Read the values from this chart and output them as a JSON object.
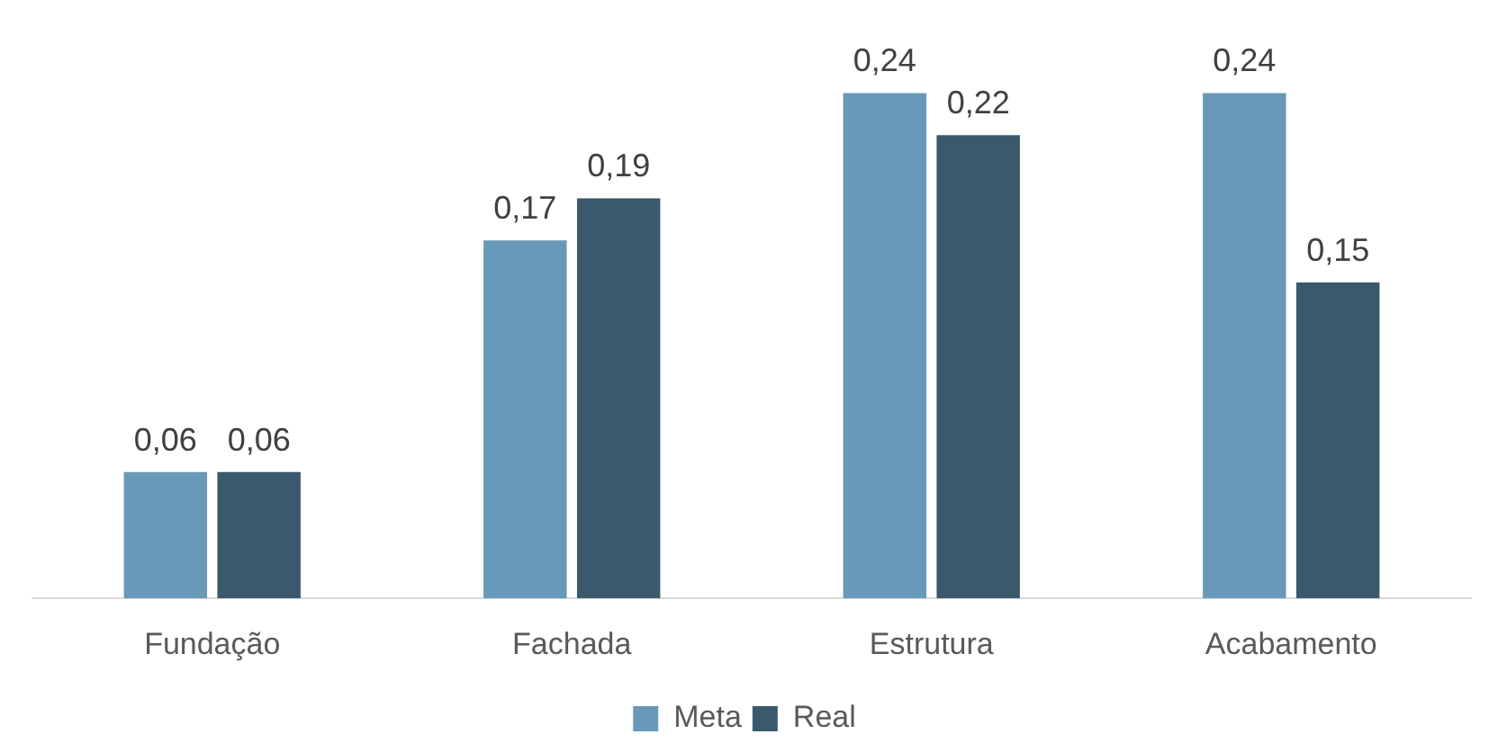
{
  "chart_data": {
    "type": "bar",
    "categories": [
      "Fundação",
      "Fachada",
      "Estrutura",
      "Acabamento"
    ],
    "series": [
      {
        "name": "Meta",
        "color": "#6899b9",
        "values": [
          0.06,
          0.17,
          0.24,
          0.24
        ],
        "value_labels": [
          "0,06",
          "0,17",
          "0,24",
          "0,24"
        ]
      },
      {
        "name": "Real",
        "color": "#3b596c",
        "values": [
          0.06,
          0.19,
          0.22,
          0.15
        ],
        "value_labels": [
          "0,06",
          "0,19",
          "0,22",
          "0,15"
        ]
      }
    ],
    "tick_labels": "x",
    "grid": false,
    "legend": "bottom"
  }
}
